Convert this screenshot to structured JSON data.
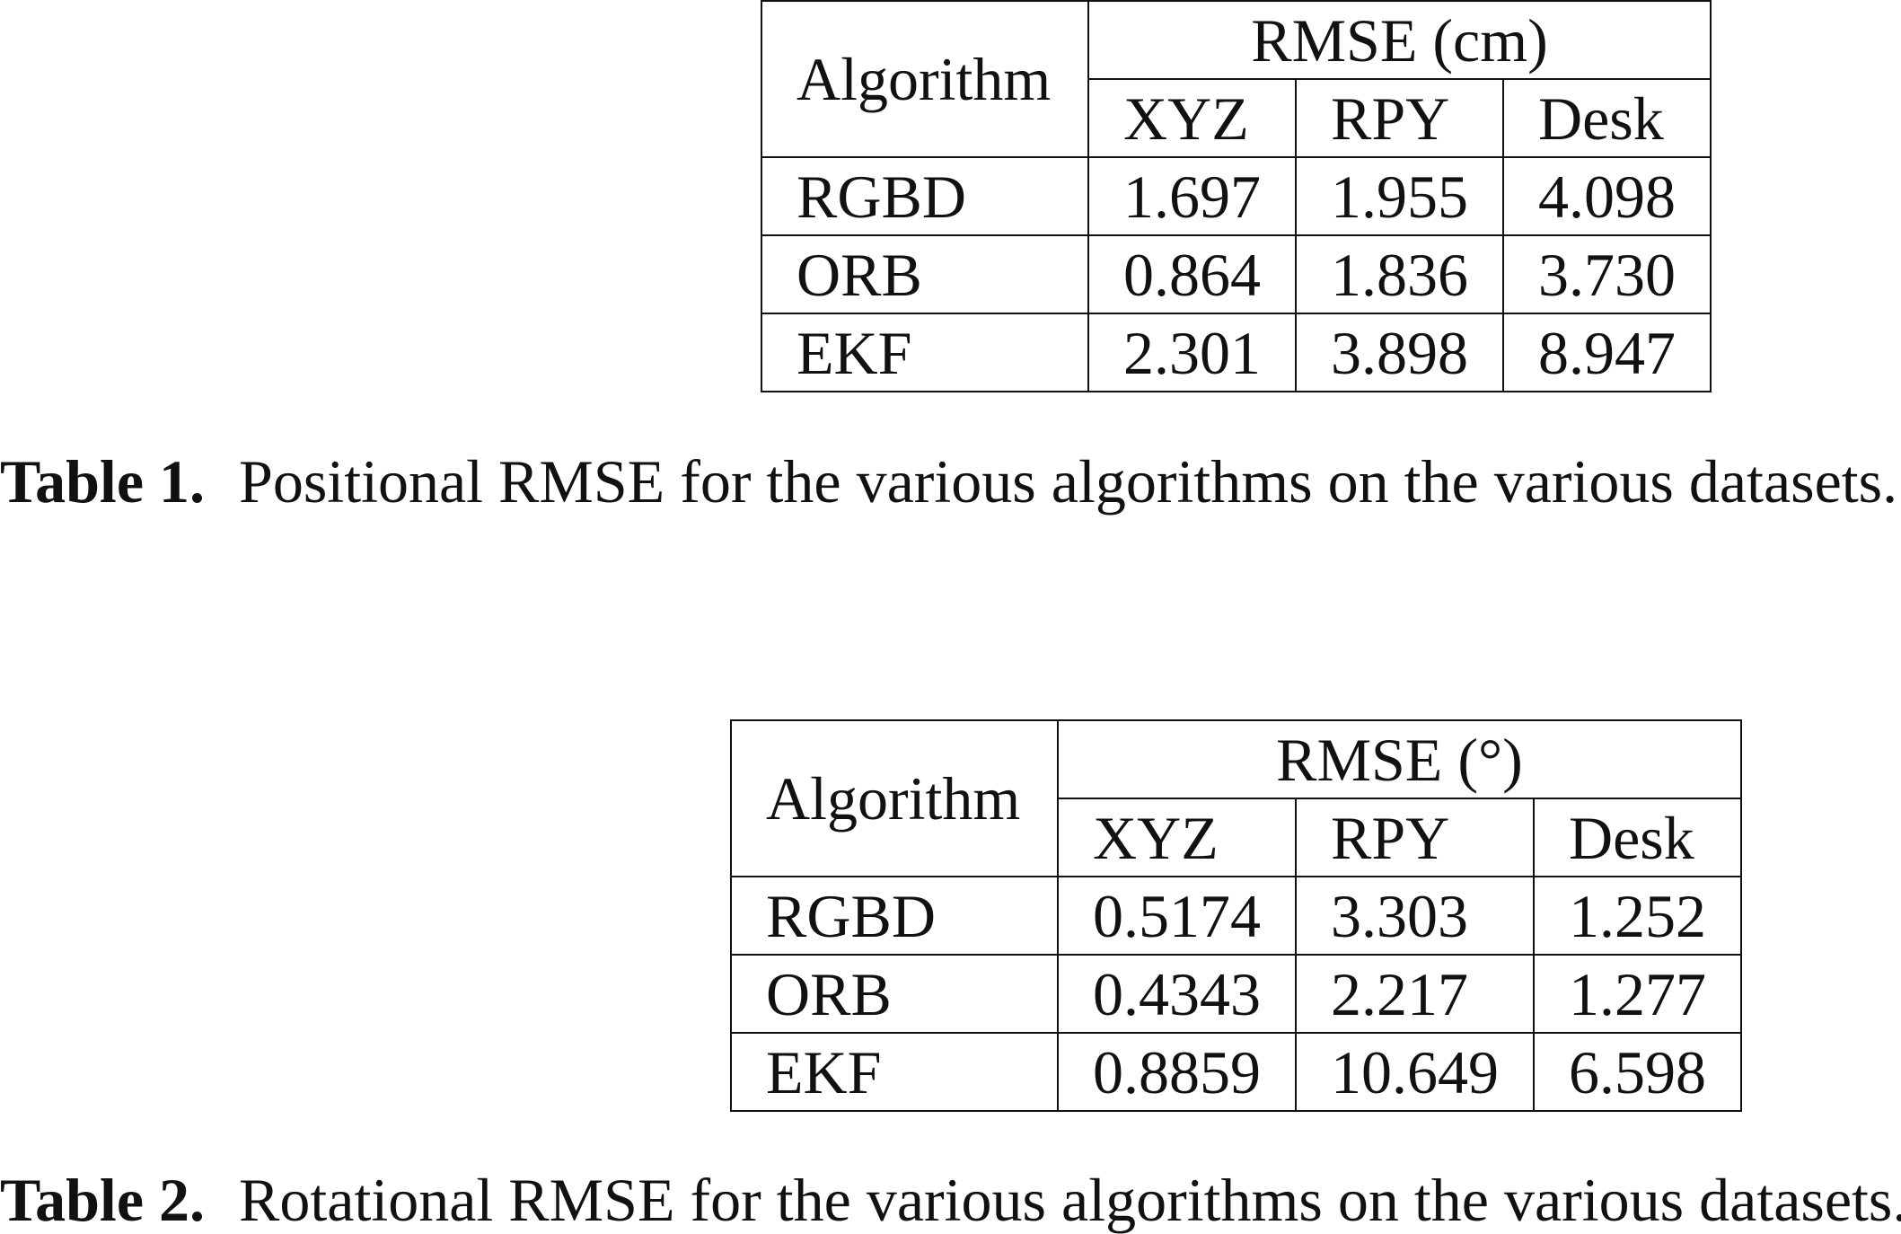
{
  "table1": {
    "algorithm_header": "Algorithm",
    "group_header": "RMSE (cm)",
    "columns": [
      "XYZ",
      "RPY",
      "Desk"
    ],
    "rows": [
      {
        "algorithm": "RGBD",
        "values": [
          "1.697",
          "1.955",
          "4.098"
        ]
      },
      {
        "algorithm": "ORB",
        "values": [
          "0.864",
          "1.836",
          "3.730"
        ]
      },
      {
        "algorithm": "EKF",
        "values": [
          "2.301",
          "3.898",
          "8.947"
        ]
      }
    ],
    "caption_label": "Table 1.",
    "caption_text": "Positional RMSE for the various algorithms on the various datasets."
  },
  "table2": {
    "algorithm_header": "Algorithm",
    "group_header": "RMSE (°)",
    "columns": [
      "XYZ",
      "RPY",
      "Desk"
    ],
    "rows": [
      {
        "algorithm": "RGBD",
        "values": [
          "0.5174",
          "3.303",
          "1.252"
        ]
      },
      {
        "algorithm": "ORB",
        "values": [
          "0.4343",
          "2.217",
          "1.277"
        ]
      },
      {
        "algorithm": "EKF",
        "values": [
          "0.8859",
          "10.649",
          "6.598"
        ]
      }
    ],
    "caption_label": "Table 2.",
    "caption_text": "Rotational RMSE for the various algorithms on the various datasets."
  }
}
